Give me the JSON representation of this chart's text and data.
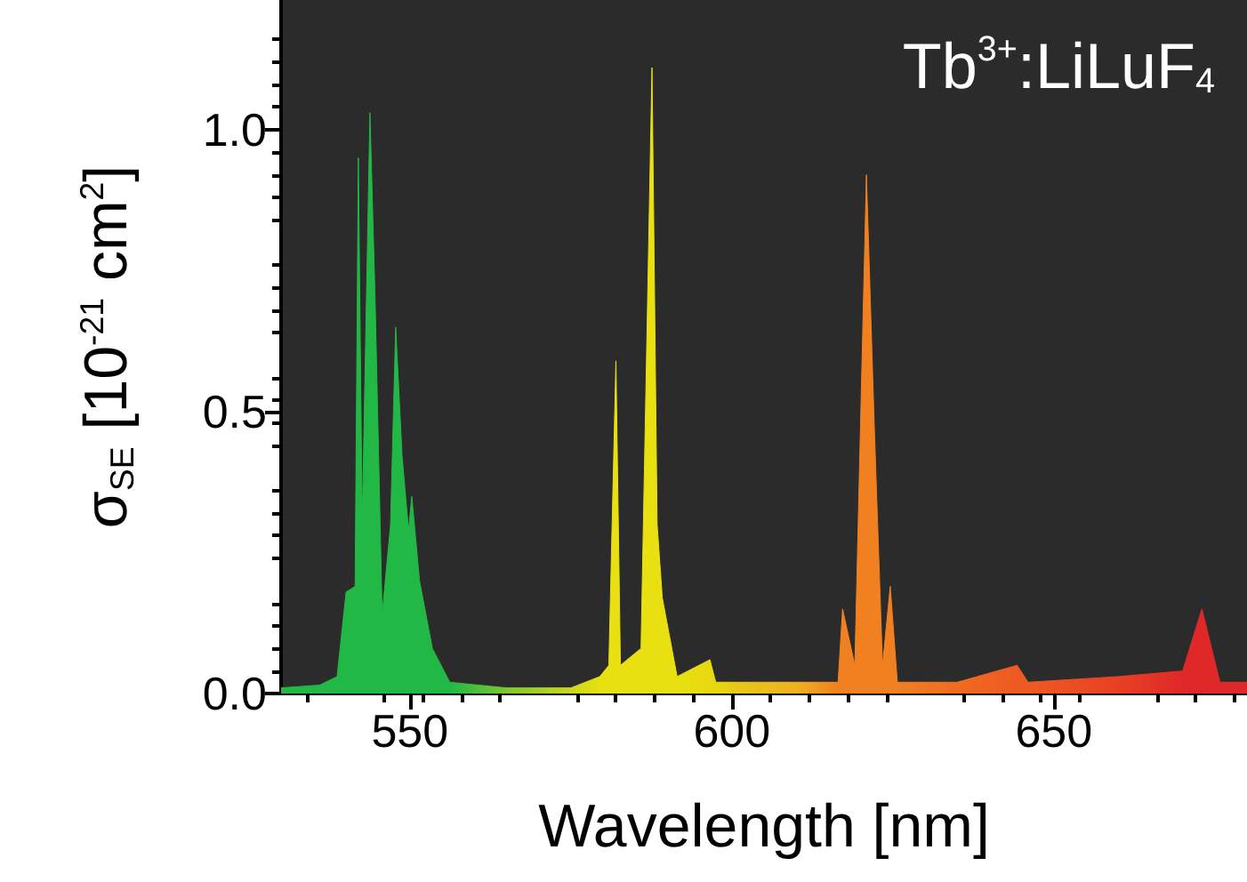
{
  "chart_data": {
    "type": "area",
    "xlabel": "Wavelength [nm]",
    "ylabel": "σ$_{SE}$ [10$^{-21}$ cm$^{2}$]",
    "annotations": [
      "Tb$^{3+}$:LiLuF$_{4}$"
    ],
    "xlim": [
      530,
      680
    ],
    "xticks": [
      550,
      600,
      650
    ],
    "ylim": [
      0,
      1.23
    ],
    "yticks": [
      {
        "value": 0,
        "label": "0.0"
      },
      {
        "value": 0.5,
        "label": "0.5"
      },
      {
        "value": 1,
        "label": "1.0"
      }
    ],
    "x": [
      530,
      536,
      538.7,
      540.1,
      541.5,
      542,
      542.6,
      543.8,
      544.6,
      545.7,
      547,
      547.8,
      548.8,
      549.8,
      550.3,
      551.5,
      553.5,
      556.2,
      565,
      575,
      579.5,
      580.9,
      582,
      582.7,
      585.9,
      587.6,
      588.4,
      589.2,
      591.5,
      596.6,
      597.5,
      600.8,
      610,
      616.5,
      617.2,
      619.1,
      620.9,
      622.1,
      623.4,
      624.6,
      625.7,
      635,
      644.3,
      646,
      660,
      670,
      673,
      675.8,
      680
    ],
    "values": [
      0.01,
      0.015,
      0.03,
      0.18,
      0.19,
      0.95,
      0.3,
      1.03,
      0.7,
      0.14,
      0.3,
      0.65,
      0.42,
      0.29,
      0.35,
      0.2,
      0.08,
      0.02,
      0.01,
      0.01,
      0.03,
      0.05,
      0.59,
      0.05,
      0.08,
      1.11,
      0.3,
      0.17,
      0.03,
      0.06,
      0.02,
      0.02,
      0.02,
      0.02,
      0.15,
      0.05,
      0.92,
      0.48,
      0.05,
      0.19,
      0.02,
      0.02,
      0.05,
      0.02,
      0.03,
      0.04,
      0.15,
      0.02,
      0.02
    ],
    "colors": [
      "#22b845",
      "#22b845",
      "#22b845",
      "#22b845",
      "#22b845",
      "#22b845",
      "#22b845",
      "#22b845",
      "#22b845",
      "#22b845",
      "#22b845",
      "#22b845",
      "#22b845",
      "#22b845",
      "#22b845",
      "#22b845",
      "#22b845",
      "#22b845",
      "#7cc830",
      "#c8d820",
      "#e8e010",
      "#e8e010",
      "#e8e010",
      "#e8e010",
      "#e8e010",
      "#e8e010",
      "#e8e010",
      "#e8e010",
      "#e8e010",
      "#e8d810",
      "#e8d810",
      "#e8c818",
      "#f0b020",
      "#f08020",
      "#f08020",
      "#f08020",
      "#f08020",
      "#f08020",
      "#f08020",
      "#f08020",
      "#f08020",
      "#f06a20",
      "#ee5a22",
      "#ee5a22",
      "#e84024",
      "#e02828",
      "#e02828",
      "#e02828",
      "#e02828"
    ]
  }
}
